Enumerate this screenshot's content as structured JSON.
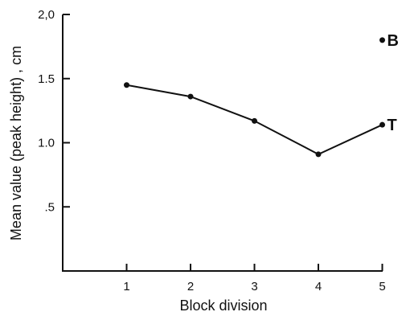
{
  "chart_data": {
    "type": "line",
    "title": "",
    "xlabel": "Block division",
    "ylabel": "Mean value  (peak height) , cm",
    "xlim": [
      0,
      5
    ],
    "ylim": [
      0,
      2.0
    ],
    "x_ticks": [
      {
        "value": 1,
        "label": "1"
      },
      {
        "value": 2,
        "label": "2"
      },
      {
        "value": 3,
        "label": "3"
      },
      {
        "value": 4,
        "label": "4"
      },
      {
        "value": 5,
        "label": "5"
      }
    ],
    "y_ticks": [
      {
        "value": 0.5,
        "label": ".5"
      },
      {
        "value": 1.0,
        "label": "1.0"
      },
      {
        "value": 1.5,
        "label": "1.5"
      },
      {
        "value": 2.0,
        "label": "2,0"
      }
    ],
    "grid": false,
    "series": [
      {
        "name": "",
        "connected": true,
        "points": [
          {
            "x": 1,
            "y": 1.45
          },
          {
            "x": 2,
            "y": 1.36
          },
          {
            "x": 3,
            "y": 1.17
          },
          {
            "x": 4,
            "y": 0.91
          },
          {
            "x": 5,
            "y": 1.14
          }
        ]
      }
    ],
    "annotations": [
      {
        "text": "B",
        "x": 5,
        "y": 1.8
      },
      {
        "text": "T",
        "x": 5,
        "y": 1.14
      }
    ]
  }
}
